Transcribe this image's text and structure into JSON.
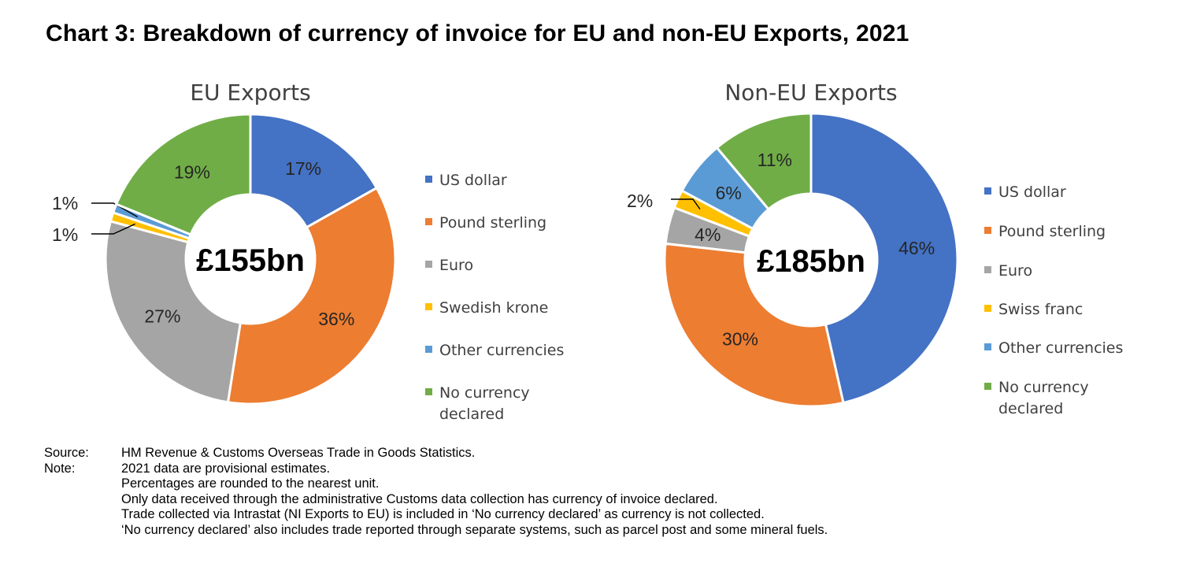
{
  "title": "Chart 3: Breakdown of currency of invoice for EU and non-EU Exports, 2021",
  "chart_data": [
    {
      "type": "donut",
      "title": "EU Exports",
      "total_label": "£155bn",
      "colors": [
        "#4472C4",
        "#ED7D31",
        "#A5A5A5",
        "#FFC000",
        "#5B9BD5",
        "#70AD47"
      ],
      "legend": [
        {
          "label": "US dollar"
        },
        {
          "label": "Pound sterling"
        },
        {
          "label": "Euro"
        },
        {
          "label": "Swedish krone"
        },
        {
          "label": "Other currencies"
        },
        {
          "label": "No currency declared",
          "lines": [
            "No currency",
            "declared"
          ]
        }
      ],
      "slices": [
        {
          "name": "US dollar",
          "value": 17,
          "label": "17%"
        },
        {
          "name": "Pound sterling",
          "value": 36,
          "label": "36%"
        },
        {
          "name": "Euro",
          "value": 27,
          "label": "27%"
        },
        {
          "name": "Swedish krone",
          "value": 1,
          "label": "1%"
        },
        {
          "name": "Other currencies",
          "value": 1,
          "label": "1%"
        },
        {
          "name": "No currency declared",
          "value": 19,
          "label": "19%"
        }
      ]
    },
    {
      "type": "donut",
      "title": "Non-EU Exports",
      "total_label": "£185bn",
      "colors": [
        "#4472C4",
        "#ED7D31",
        "#A5A5A5",
        "#FFC000",
        "#5B9BD5",
        "#70AD47"
      ],
      "legend": [
        {
          "label": "US dollar"
        },
        {
          "label": "Pound sterling"
        },
        {
          "label": "Euro"
        },
        {
          "label": "Swiss franc"
        },
        {
          "label": "Other currencies"
        },
        {
          "label": "No currency declared",
          "lines": [
            "No currency",
            "declared"
          ]
        }
      ],
      "slices": [
        {
          "name": "US dollar",
          "value": 46,
          "label": "46%"
        },
        {
          "name": "Pound sterling",
          "value": 30,
          "label": "30%"
        },
        {
          "name": "Euro",
          "value": 4,
          "label": "4%"
        },
        {
          "name": "Swiss franc",
          "value": 2,
          "label": "2%"
        },
        {
          "name": "Other currencies",
          "value": 6,
          "label": "6%"
        },
        {
          "name": "No currency declared",
          "value": 11,
          "label": "11%"
        }
      ]
    }
  ],
  "footer": {
    "source_key": "Source:",
    "source_text": "HM Revenue & Customs Overseas Trade in Goods Statistics.",
    "note_key": "Note:",
    "notes": [
      "2021 data are provisional estimates.",
      "Percentages are rounded to the nearest unit.",
      "Only data received through the administrative Customs data collection has currency of invoice declared.",
      "Trade collected via Intrastat (NI Exports to EU) is included in ‘No currency declared’ as currency is not collected.",
      "‘No currency declared’ also includes trade reported through separate systems, such as parcel post and some mineral fuels."
    ]
  }
}
